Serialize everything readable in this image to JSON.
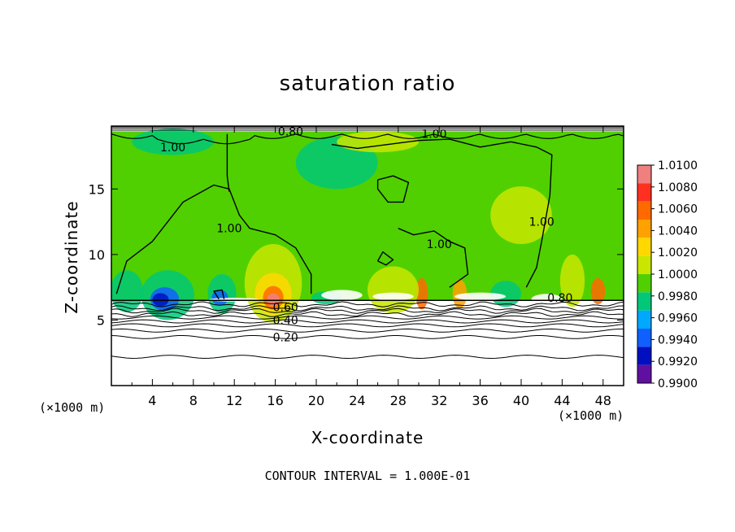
{
  "chart_data": {
    "type": "heatmap",
    "title": "saturation ratio",
    "xlabel": "X-coordinate",
    "ylabel": "Z-coordinate",
    "x_unit": "(×1000 m)",
    "y_unit": "(×1000 m)",
    "xlim": [
      0,
      50
    ],
    "ylim": [
      0,
      19.8
    ],
    "x_ticks": [
      4,
      8,
      12,
      16,
      20,
      24,
      28,
      32,
      36,
      40,
      44,
      48
    ],
    "y_ticks": [
      5,
      10,
      15
    ],
    "colorbar": {
      "range": [
        0.99,
        1.01
      ],
      "tick_labels": [
        "1.0100",
        "1.0080",
        "1.0060",
        "1.0040",
        "1.0020",
        "1.0000",
        "0.9980",
        "0.9960",
        "0.9940",
        "0.9920",
        "0.9900"
      ],
      "colors": [
        "#f08080",
        "#ff3020",
        "#ff6a00",
        "#ffa200",
        "#ffd800",
        "#c8e600",
        "#50d000",
        "#00c878",
        "#00a8ff",
        "#1060ff",
        "#0010c0",
        "#6010a0"
      ]
    },
    "background_value": 1.0,
    "cloud_base_z": 6.5,
    "cloud_top_z": 19.4,
    "contour_labels": [
      {
        "text": "1.00",
        "x": 6.0,
        "y": 18.2
      },
      {
        "text": "0.80",
        "x": 17.5,
        "y": 19.4
      },
      {
        "text": "1.00",
        "x": 31.5,
        "y": 19.2
      },
      {
        "text": "1.00",
        "x": 11.5,
        "y": 12.0
      },
      {
        "text": "1.00",
        "x": 32.0,
        "y": 10.8
      },
      {
        "text": "1.00",
        "x": 42.0,
        "y": 12.5
      },
      {
        "text": "0.80",
        "x": 43.8,
        "y": 6.7
      },
      {
        "text": "0.60",
        "x": 17.0,
        "y": 6.0
      },
      {
        "text": "0.40",
        "x": 17.0,
        "y": 5.0
      },
      {
        "text": "0.20",
        "x": 17.0,
        "y": 3.7
      }
    ],
    "contour_interval_label": "CONTOUR INTERVAL = 1.000E-01"
  }
}
